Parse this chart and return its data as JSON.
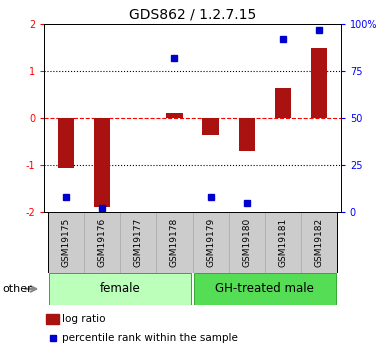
{
  "title": "GDS862 / 1.2.7.15",
  "samples": [
    "GSM19175",
    "GSM19176",
    "GSM19177",
    "GSM19178",
    "GSM19179",
    "GSM19180",
    "GSM19181",
    "GSM19182"
  ],
  "log_ratios": [
    -1.05,
    -1.9,
    0.0,
    0.1,
    -0.35,
    -0.7,
    0.65,
    1.5
  ],
  "percentile_ranks": [
    8,
    2,
    null,
    82,
    8,
    5,
    92,
    97
  ],
  "groups": [
    {
      "label": "female",
      "start": 0,
      "end": 3,
      "color": "#bbffbb"
    },
    {
      "label": "GH-treated male",
      "start": 4,
      "end": 7,
      "color": "#55dd55"
    }
  ],
  "bar_color": "#aa1111",
  "dot_color": "#0000cc",
  "ylim_left": [
    -2.0,
    2.0
  ],
  "ylim_right": [
    0,
    100
  ],
  "yticks_left": [
    -2,
    -1,
    0,
    1,
    2
  ],
  "ytick_labels_left": [
    "-2",
    "-1",
    "0",
    "1",
    "2"
  ],
  "yticks_right": [
    0,
    25,
    50,
    75,
    100
  ],
  "ytick_labels_right": [
    "0",
    "25",
    "50",
    "75",
    "100%"
  ],
  "legend_log_ratio": "log ratio",
  "legend_percentile": "percentile rank within the sample",
  "other_label": "other",
  "dotted_lines_black": [
    -1,
    1
  ],
  "dashed_line_red": 0,
  "bg_color": "#ffffff",
  "title_fontsize": 10,
  "tick_fontsize": 7,
  "label_fontsize": 7.5,
  "group_label_fontsize": 8.5,
  "other_fontsize": 8,
  "sample_fontsize": 6.5,
  "bar_width": 0.45
}
